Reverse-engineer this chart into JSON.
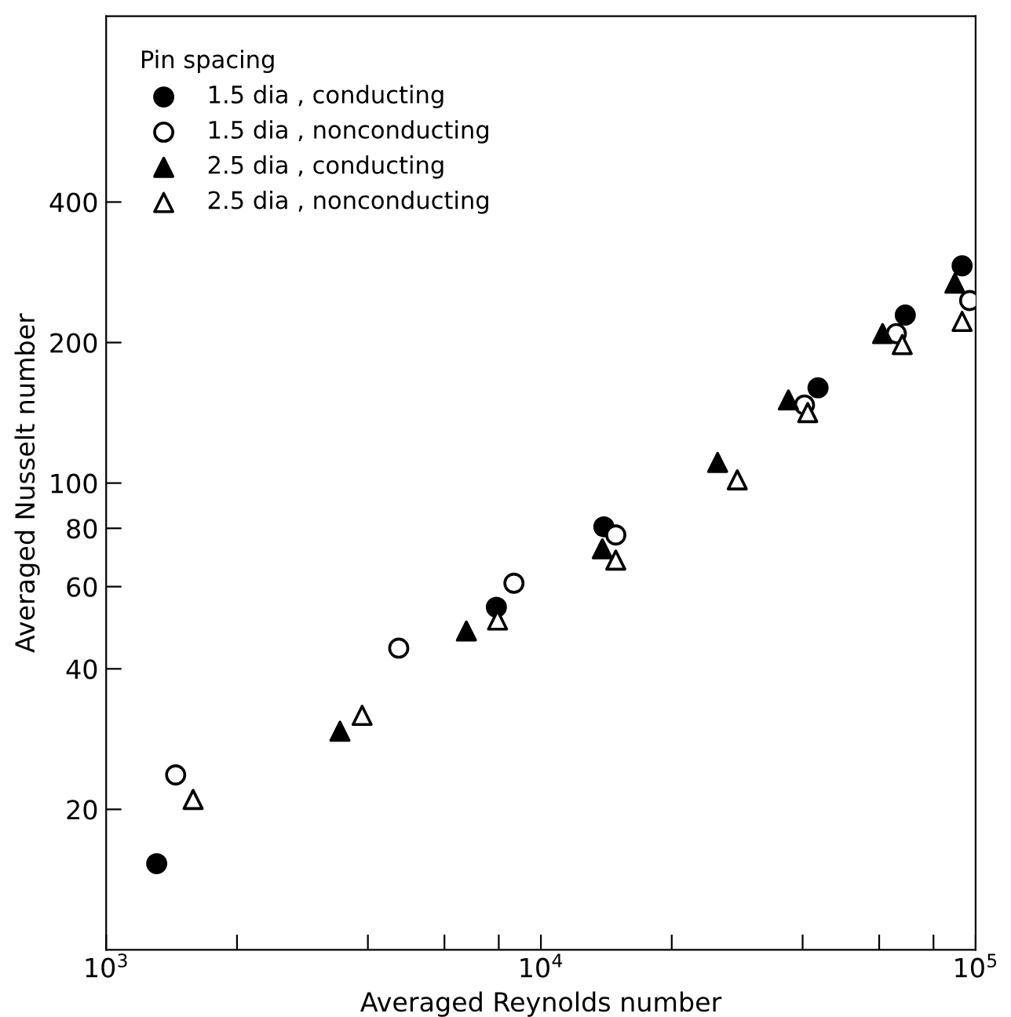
{
  "chart_data": {
    "type": "scatter",
    "xlabel": "Averaged Reynolds number",
    "ylabel": "Averaged Nusselt number",
    "legend_title": "Pin spacing",
    "legend": "top left",
    "log": "xy",
    "grid": false,
    "xlim": [
      1000,
      100000
    ],
    "ylim": [
      10,
      1000
    ],
    "xticks": [
      {
        "value": 1000,
        "label": "10$^{3}$"
      },
      {
        "value": 2000,
        "label": null
      },
      {
        "value": 4000,
        "label": null
      },
      {
        "value": 6000,
        "label": null
      },
      {
        "value": 8000,
        "label": null
      },
      {
        "value": 10000,
        "label": "10$^{4}$"
      },
      {
        "value": 20000,
        "label": null
      },
      {
        "value": 40000,
        "label": null
      },
      {
        "value": 60000,
        "label": null
      },
      {
        "value": 80000,
        "label": null
      },
      {
        "value": 100000,
        "label": "10$^{5}$"
      }
    ],
    "yticks": [
      20,
      40,
      60,
      80,
      100,
      200,
      400
    ],
    "series": [
      {
        "name": "1.5 dia , conducting",
        "color": "#000000",
        "marker": "circle",
        "x": [
          1307,
          7900,
          13960,
          43400,
          68900,
          93100
        ],
        "values": [
          15.3,
          54.2,
          80.6,
          160,
          229,
          292
        ]
      },
      {
        "name": "1.5 dia , nonconducting",
        "color": "#ffffff",
        "marker": "circle",
        "x": [
          1445,
          4710,
          8670,
          14870,
          40400,
          65700,
          96900
        ],
        "values": [
          23.7,
          44.3,
          61,
          77.4,
          147,
          209,
          246
        ]
      },
      {
        "name": "2.5 dia , conducting",
        "color": "#000000",
        "marker": "triangle",
        "x": [
          3450,
          6740,
          13850,
          25500,
          37100,
          61100,
          89600
        ],
        "values": [
          29.4,
          48.2,
          72.3,
          110.7,
          150.7,
          209,
          268
        ]
      },
      {
        "name": "2.5 dia , nonconducting",
        "color": "#ffffff",
        "marker": "triangle",
        "x": [
          1585,
          3880,
          7950,
          14870,
          28300,
          41100,
          67800,
          93100
        ],
        "values": [
          21.0,
          31.8,
          50.9,
          68.4,
          101.6,
          141.6,
          198,
          222
        ]
      }
    ]
  }
}
